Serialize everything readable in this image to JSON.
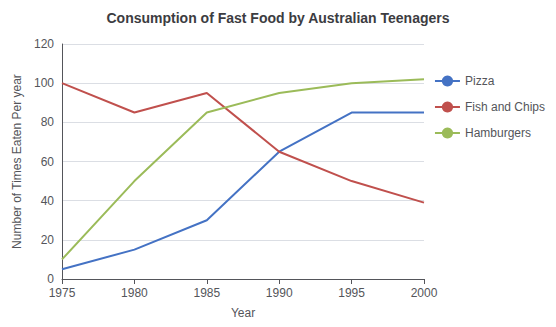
{
  "chart_data": {
    "type": "line",
    "title": "Consumption of Fast Food by Australian Teenagers",
    "xlabel": "Year",
    "ylabel": "Number of Times Eaten Per year",
    "x": [
      1975,
      1980,
      1985,
      1990,
      1995,
      2000
    ],
    "series": [
      {
        "name": "Pizza",
        "color": "#4472C4",
        "values": [
          5,
          15,
          30,
          65,
          85,
          85
        ]
      },
      {
        "name": "Fish and Chips",
        "color": "#C0504D",
        "values": [
          100,
          85,
          95,
          65,
          50,
          39
        ]
      },
      {
        "name": "Hamburgers",
        "color": "#9BBB59",
        "values": [
          10,
          50,
          85,
          95,
          100,
          102
        ]
      }
    ],
    "xlim": [
      1975,
      2000
    ],
    "xticks": [
      1975,
      1980,
      1985,
      1990,
      1995,
      2000
    ],
    "ylim": [
      0,
      120
    ],
    "yticks": [
      0,
      20,
      40,
      60,
      80,
      100,
      120
    ],
    "grid": true,
    "legend": "right"
  }
}
